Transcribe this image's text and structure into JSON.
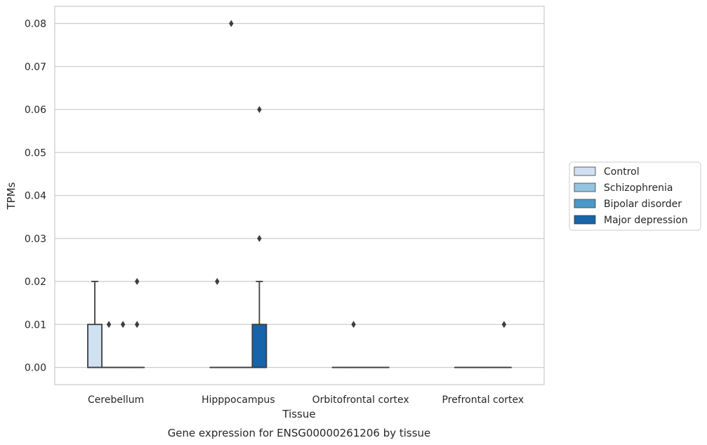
{
  "chart_data": {
    "type": "boxplot",
    "title": "Gene expression for ENSG00000261206 by tissue",
    "xlabel": "Tissue",
    "ylabel": "TPMs",
    "ylim": [
      -0.004,
      0.084
    ],
    "yticks": [
      "0.00",
      "0.01",
      "0.02",
      "0.03",
      "0.04",
      "0.05",
      "0.06",
      "0.07",
      "0.08"
    ],
    "grid": true,
    "legend_position": "right",
    "categories": [
      "Cerebellum",
      "Hipppocampus",
      "Orbitofrontal cortex",
      "Prefrontal cortex"
    ],
    "series": [
      {
        "name": "Control",
        "color": "#d0e1f2",
        "boxes": [
          {
            "q1": 0.0,
            "median": 0.0,
            "q3": 0.01,
            "whislo": 0.0,
            "whishi": 0.02,
            "fliers": []
          },
          {
            "q1": 0.0,
            "median": 0.0,
            "q3": 0.0,
            "whislo": 0.0,
            "whishi": 0.0,
            "fliers": [
              0.02
            ]
          },
          {
            "q1": 0.0,
            "median": 0.0,
            "q3": 0.0,
            "whislo": 0.0,
            "whishi": 0.0,
            "fliers": []
          },
          {
            "q1": 0.0,
            "median": 0.0,
            "q3": 0.0,
            "whislo": 0.0,
            "whishi": 0.0,
            "fliers": []
          }
        ]
      },
      {
        "name": "Schizophrenia",
        "color": "#94c4df",
        "boxes": [
          {
            "q1": 0.0,
            "median": 0.0,
            "q3": 0.0,
            "whislo": 0.0,
            "whishi": 0.0,
            "fliers": [
              0.01
            ]
          },
          {
            "q1": 0.0,
            "median": 0.0,
            "q3": 0.0,
            "whislo": 0.0,
            "whishi": 0.0,
            "fliers": [
              0.08
            ]
          },
          {
            "q1": 0.0,
            "median": 0.0,
            "q3": 0.0,
            "whislo": 0.0,
            "whishi": 0.0,
            "fliers": [
              0.01
            ]
          },
          {
            "q1": 0.0,
            "median": 0.0,
            "q3": 0.0,
            "whislo": 0.0,
            "whishi": 0.0,
            "fliers": []
          }
        ]
      },
      {
        "name": "Bipolar disorder",
        "color": "#4a98c9",
        "boxes": [
          {
            "q1": 0.0,
            "median": 0.0,
            "q3": 0.0,
            "whislo": 0.0,
            "whishi": 0.0,
            "fliers": [
              0.01
            ]
          },
          {
            "q1": 0.0,
            "median": 0.0,
            "q3": 0.0,
            "whislo": 0.0,
            "whishi": 0.0,
            "fliers": []
          },
          {
            "q1": 0.0,
            "median": 0.0,
            "q3": 0.0,
            "whislo": 0.0,
            "whishi": 0.0,
            "fliers": []
          },
          {
            "q1": 0.0,
            "median": 0.0,
            "q3": 0.0,
            "whislo": 0.0,
            "whishi": 0.0,
            "fliers": []
          }
        ]
      },
      {
        "name": "Major depression",
        "color": "#1764ab",
        "boxes": [
          {
            "q1": 0.0,
            "median": 0.0,
            "q3": 0.0,
            "whislo": 0.0,
            "whishi": 0.0,
            "fliers": [
              0.01,
              0.02
            ]
          },
          {
            "q1": 0.0,
            "median": 0.0,
            "q3": 0.01,
            "whislo": 0.0,
            "whishi": 0.02,
            "fliers": [
              0.03,
              0.06
            ]
          },
          {
            "q1": 0.0,
            "median": 0.0,
            "q3": 0.0,
            "whislo": 0.0,
            "whishi": 0.0,
            "fliers": []
          },
          {
            "q1": 0.0,
            "median": 0.0,
            "q3": 0.0,
            "whislo": 0.0,
            "whishi": 0.0,
            "fliers": [
              0.01
            ]
          }
        ]
      }
    ]
  }
}
